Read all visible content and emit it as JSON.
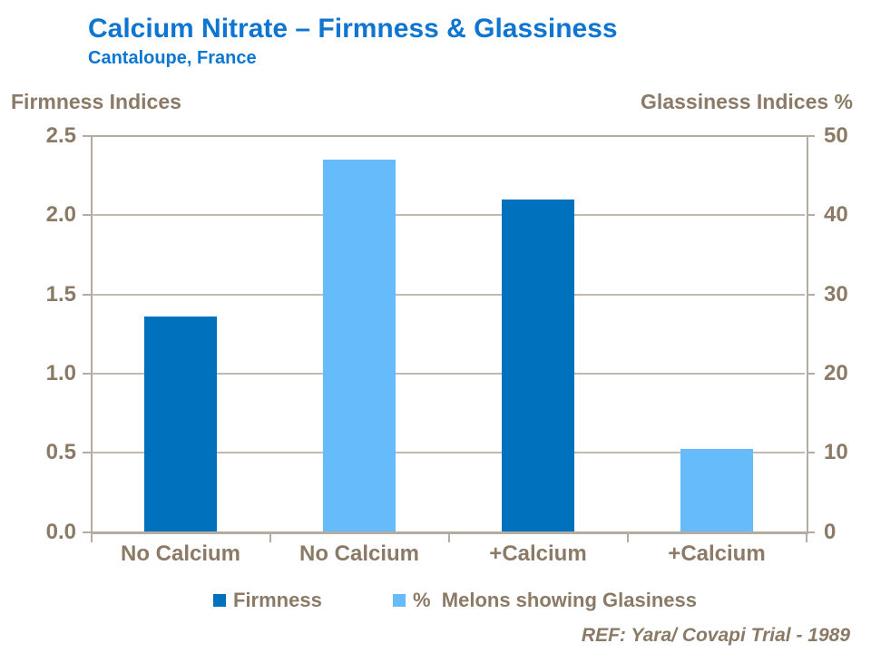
{
  "header": {
    "title": "Calcium Nitrate – Firmness & Glassiness",
    "subtitle": "Cantaloupe, France",
    "title_color": "#0E76D0"
  },
  "footer": {
    "reference": "REF: Yara/ Covapi Trial - 1989"
  },
  "colors": {
    "firmness_bar": "#0071BD",
    "glassiness_bar": "#66BBFA",
    "chart_text": "#8A7A66",
    "axis_line": "#B5ABA0",
    "gridline": "#C2B9AF",
    "background": "#FFFFFF"
  },
  "chart_data": {
    "type": "bar",
    "title": "Calcium Nitrate – Firmness & Glassiness",
    "subtitle": "Cantaloupe, France",
    "categories": [
      "No Calcium",
      "No Calcium",
      "+Calcium",
      "+Calcium"
    ],
    "series": [
      {
        "name": "Firmness",
        "axis": "left",
        "color": "#0071BD",
        "values": [
          1.36,
          null,
          2.1,
          null
        ]
      },
      {
        "name": "%  Melons showing Glasiness",
        "axis": "right",
        "color": "#66BBFA",
        "values": [
          null,
          47,
          null,
          10.5
        ]
      }
    ],
    "left_axis": {
      "label": "Firmness Indices",
      "min": 0,
      "max": 2.5,
      "step": 0.5,
      "ticks": [
        "2.5",
        "2.0",
        "1.5",
        "1.0",
        "0.5",
        "0.0"
      ]
    },
    "right_axis": {
      "label": "Glassiness Indices %",
      "min": 0,
      "max": 50,
      "step": 10,
      "ticks": [
        "50",
        "40",
        "30",
        "20",
        "10",
        "0"
      ]
    },
    "grid": true,
    "legend_position": "bottom"
  }
}
